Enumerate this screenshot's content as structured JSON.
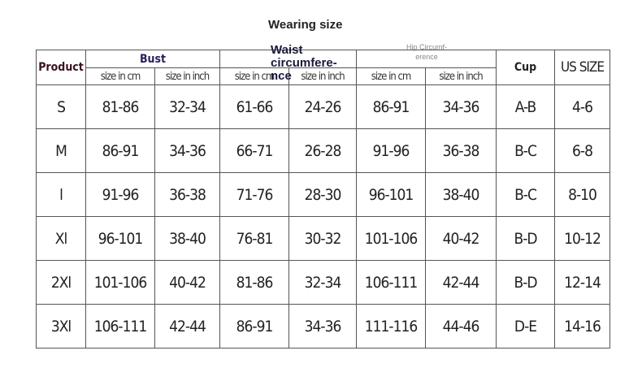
{
  "title": "Wearing size",
  "headers": {
    "product": "Product",
    "bust": "Bust",
    "waist": "Waist circumfere- nce",
    "hip": "Hip Circumf- erence",
    "cup": "Cup",
    "us_size": "US SIZE",
    "cm": "size in cm",
    "inch": "size in inch"
  },
  "rows": [
    {
      "size": "S",
      "bust_cm": "81-86",
      "bust_in": "32-34",
      "waist_cm": "61-66",
      "waist_in": "24-26",
      "hip_cm": "86-91",
      "hip_in": "34-36",
      "cup": "A-B",
      "us": "4-6"
    },
    {
      "size": "M",
      "bust_cm": "86-91",
      "bust_in": "34-36",
      "waist_cm": "66-71",
      "waist_in": "26-28",
      "hip_cm": "91-96",
      "hip_in": "36-38",
      "cup": "B-C",
      "us": "6-8"
    },
    {
      "size": "l",
      "bust_cm": "91-96",
      "bust_in": "36-38",
      "waist_cm": "71-76",
      "waist_in": "28-30",
      "hip_cm": "96-101",
      "hip_in": "38-40",
      "cup": "B-C",
      "us": "8-10"
    },
    {
      "size": "Xl",
      "bust_cm": "96-101",
      "bust_in": "38-40",
      "waist_cm": "76-81",
      "waist_in": "30-32",
      "hip_cm": "101-106",
      "hip_in": "40-42",
      "cup": "B-D",
      "us": "10-12"
    },
    {
      "size": "2Xl",
      "bust_cm": "101-106",
      "bust_in": "40-42",
      "waist_cm": "81-86",
      "waist_in": "32-34",
      "hip_cm": "106-111",
      "hip_in": "42-44",
      "cup": "B-D",
      "us": "12-14"
    },
    {
      "size": "3Xl",
      "bust_cm": "106-111",
      "bust_in": "42-44",
      "waist_cm": "86-91",
      "waist_in": "34-36",
      "hip_cm": "111-116",
      "hip_in": "44-46",
      "cup": "D-E",
      "us": "14-16"
    }
  ]
}
